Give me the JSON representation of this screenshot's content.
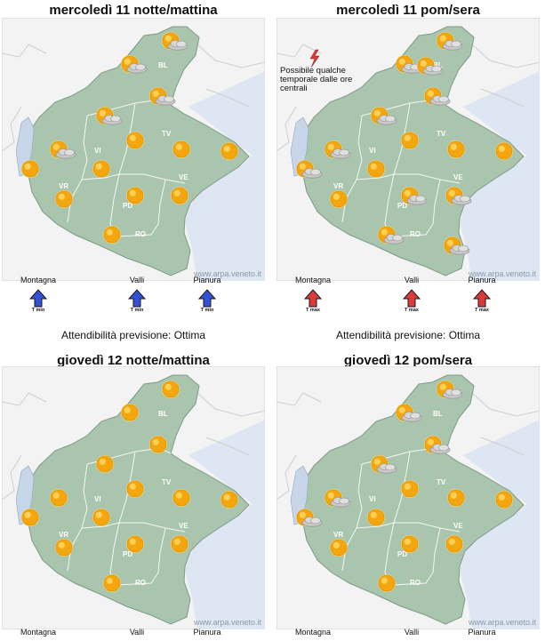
{
  "map_credit": "www.arpa.veneto.it",
  "province_labels": [
    "BL",
    "TV",
    "VI",
    "VR",
    "PD",
    "VE",
    "RO"
  ],
  "colors": {
    "region_fill": "#a9c5ae",
    "sea": "#dde6f2",
    "outside": "#f3f3f3",
    "sun": "#f4a60e",
    "cloud": "#9a9a9a",
    "arrow_min": "#3351d6",
    "arrow_max": "#d93a3a"
  },
  "trend_labels": [
    "Montagna",
    "Valli",
    "Pianura"
  ],
  "panels": [
    {
      "title": "mercoledì 11 notte/mattina",
      "icons": [
        "sun-cloud",
        "sun-cloud",
        "sun-cloud",
        "sun-cloud",
        "sun-cloud",
        "sun",
        "sun",
        "sun",
        "sun",
        "sun",
        "sun",
        "sun",
        "sun",
        "sun"
      ],
      "trend": {
        "tag": "T min",
        "direction": "up",
        "color": "arrow_min"
      },
      "reliability": "Attendibilità previsione: Ottima"
    },
    {
      "title": "mercoledì 11 pom/sera",
      "note": [
        "Possibile qualche",
        "temporale dalle ore",
        "centrali"
      ],
      "icons": [
        "sun-cloud",
        "sun-cloud",
        "sun-cloud",
        "sun-cloud",
        "sun-cloud",
        "sun-cloud",
        "sun",
        "sun",
        "sun",
        "sun",
        "sun-cloud",
        "sun-cloud",
        "sun",
        "sun-cloud",
        "sun-cloud",
        "sun-cloud"
      ],
      "trend": {
        "tag": "T max",
        "direction": "up",
        "color": "arrow_max"
      },
      "reliability": "Attendibilità previsione: Ottima"
    },
    {
      "title": "giovedì 12 notte/mattina",
      "icons": [
        "sun",
        "sun",
        "sun",
        "sun",
        "sun",
        "sun",
        "sun",
        "sun",
        "sun",
        "sun",
        "sun",
        "sun",
        "sun",
        "sun"
      ]
    },
    {
      "title": "giovedì 12 pom/sera",
      "icons": [
        "sun-cloud",
        "sun-cloud",
        "sun-cloud",
        "sun-cloud",
        "sun-cloud",
        "sun-cloud",
        "sun",
        "sun",
        "sun",
        "sun",
        "sun",
        "sun",
        "sun",
        "sun"
      ]
    }
  ]
}
